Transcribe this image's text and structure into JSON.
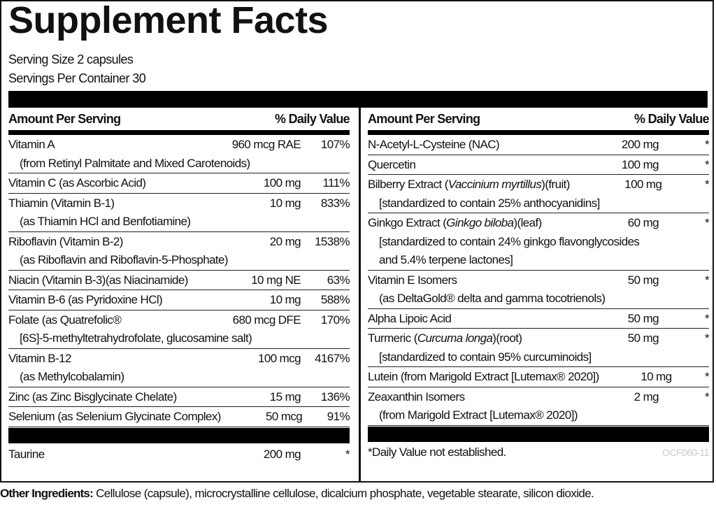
{
  "title": "Supplement Facts",
  "serving_size": "Serving Size 2 capsules",
  "servings_per_container": "Servings Per Container 30",
  "header": {
    "amount": "Amount Per Serving",
    "dv": "% Daily Value"
  },
  "left": {
    "rows": [
      {
        "name": "Vitamin A",
        "sub": "(from Retinyl Palmitate and Mixed Carotenoids)",
        "amount": "960 mcg RAE",
        "dv": "107%"
      },
      {
        "name": "Vitamin C (as Ascorbic Acid)",
        "amount": "100 mg",
        "dv": "111%"
      },
      {
        "name": "Thiamin (Vitamin B-1)",
        "sub": "(as Thiamin HCl and Benfotiamine)",
        "amount": "10 mg",
        "dv": "833%"
      },
      {
        "name": "Riboflavin (Vitamin B-2)",
        "sub": "(as Riboflavin and Riboflavin-5-Phosphate)",
        "amount": "20 mg",
        "dv": "1538%"
      },
      {
        "name": "Niacin (Vitamin B-3)(as Niacinamide)",
        "amount": "10 mg NE",
        "dv": "63%"
      },
      {
        "name": "Vitamin B-6 (as Pyridoxine HCl)",
        "amount": "10 mg",
        "dv": "588%"
      },
      {
        "name": "Folate (as Quatrefolic®",
        "sub": "[6S]-5-methyltetrahydrofolate, glucosamine salt)",
        "amount": "680 mcg DFE",
        "dv": "170%"
      },
      {
        "name": "Vitamin B-12",
        "sub": "(as Methylcobalamin)",
        "amount": "100 mcg",
        "dv": "4167%"
      },
      {
        "name": "Zinc (as Zinc Bisglycinate Chelate)",
        "amount": "15 mg",
        "dv": "136%"
      },
      {
        "name": "Selenium (as Selenium Glycinate Complex)",
        "amount": "50 mcg",
        "dv": "91%"
      }
    ],
    "after_bar": {
      "name": "Taurine",
      "amount": "200 mg",
      "dv": "*"
    }
  },
  "right": {
    "rows": [
      {
        "name": "N-Acetyl-L-Cysteine (NAC)",
        "amount": "200 mg",
        "dv": "*"
      },
      {
        "name": "Quercetin",
        "amount": "100 mg",
        "dv": "*"
      },
      {
        "name": "Bilberry Extract (",
        "italic": "Vaccinium myrtillus",
        "post": ")(fruit)",
        "sub": "[standardized to contain 25% anthocyanidins]",
        "amount": "100 mg",
        "dv": "*"
      },
      {
        "name": "Ginkgo Extract (",
        "italic": "Ginkgo biloba",
        "post": ")(leaf)",
        "sub": "[standardized to contain 24% ginkgo flavonglycosides",
        "sub2": "and 5.4% terpene lactones]",
        "amount": "60 mg",
        "dv": "*"
      },
      {
        "name": "Vitamin E Isomers",
        "sub": "(as DeltaGold® delta and gamma tocotrienols)",
        "amount": "50 mg",
        "dv": "*"
      },
      {
        "name": "Alpha Lipoic Acid",
        "amount": "50 mg",
        "dv": "*"
      },
      {
        "name": "Turmeric (",
        "italic": "Curcuma longa",
        "post": ")(root)",
        "sub": "[standardized to contain 95% curcuminoids]",
        "amount": "50 mg",
        "dv": "*"
      },
      {
        "name": "Lutein (from Marigold Extract [Lutemax® 2020])",
        "amount": "10 mg",
        "dv": "*"
      },
      {
        "name": "Zeaxanthin Isomers",
        "sub": "(from Marigold Extract [Lutemax® 2020])",
        "amount": "2 mg",
        "dv": "*"
      }
    ],
    "footnote": "*Daily Value not established.",
    "code": "OCF060-11"
  },
  "other_ingredients": {
    "label": "Other Ingredients:",
    "text": " Cellulose (capsule), microcrystalline cellulose, dicalcium phosphate, vegetable stearate, silicon dioxide."
  }
}
